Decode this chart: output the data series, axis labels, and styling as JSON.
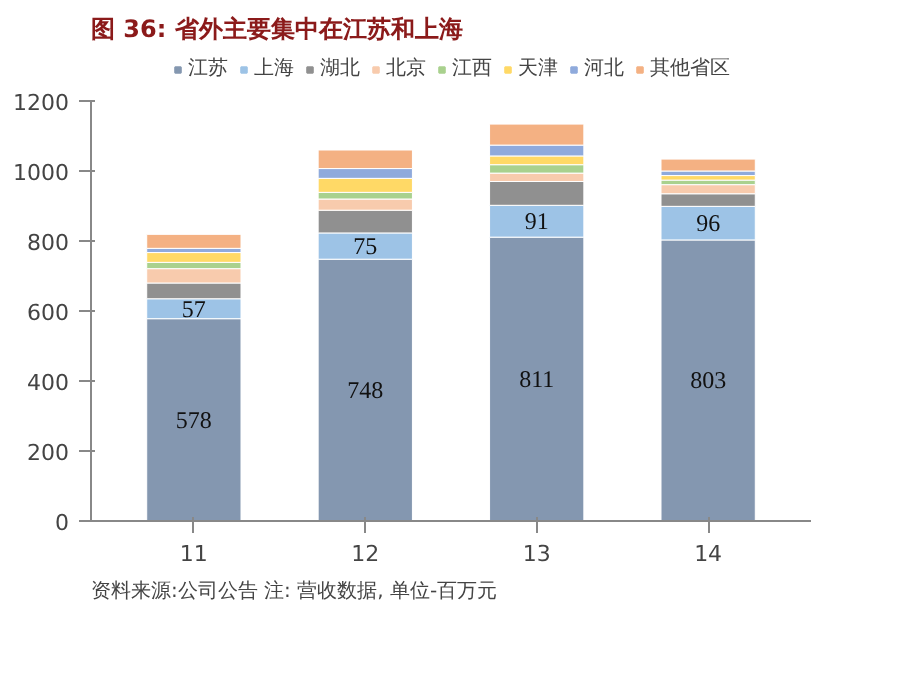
{
  "chart_data": {
    "type": "bar",
    "stacked": true,
    "title": "图 36: 省外主要集中在江苏和上海",
    "categories": [
      "11",
      "12",
      "13",
      "14"
    ],
    "series": [
      {
        "name": "江苏",
        "color": "#8497b0",
        "values": [
          578,
          748,
          811,
          803
        ],
        "value_labels": [
          "578",
          "748",
          "811",
          "803"
        ]
      },
      {
        "name": "上海",
        "color": "#9dc3e6",
        "values": [
          57,
          75,
          91,
          96
        ],
        "value_labels": [
          "57",
          "75",
          "91",
          "96"
        ]
      },
      {
        "name": "湖北",
        "color": "#909090",
        "values": [
          45,
          65,
          68,
          36
        ]
      },
      {
        "name": "北京",
        "color": "#f8cbad",
        "values": [
          41,
          32,
          24,
          26
        ]
      },
      {
        "name": "江西",
        "color": "#a9d18e",
        "values": [
          18,
          19,
          24,
          13
        ]
      },
      {
        "name": "天津",
        "color": "#ffd966",
        "values": [
          28,
          40,
          25,
          13
        ]
      },
      {
        "name": "河北",
        "color": "#8faadc",
        "values": [
          12,
          28,
          31,
          13
        ]
      },
      {
        "name": "其他省区",
        "color": "#f4b183",
        "values": [
          40,
          53,
          60,
          34
        ]
      }
    ],
    "ylim": [
      0,
      1200
    ],
    "yticks": [
      0,
      200,
      400,
      600,
      800,
      1000,
      1200
    ],
    "grid": false,
    "legend": "top",
    "annotations": [
      "资料来源:公司公告 注: 营收数据, 单位-百万元"
    ]
  }
}
